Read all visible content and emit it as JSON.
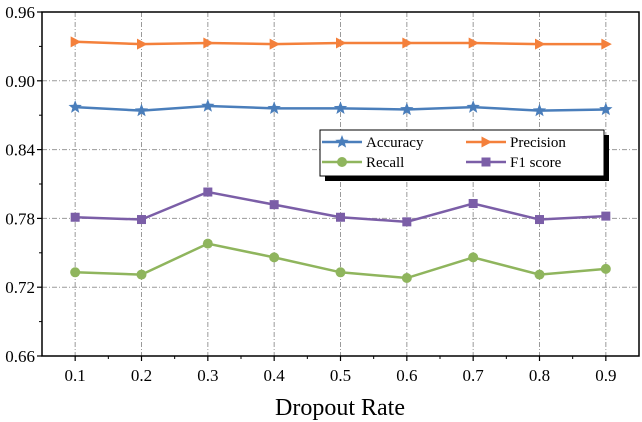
{
  "chart_data": {
    "type": "line",
    "xlabel": "Dropout Rate",
    "ylabel": "",
    "title": "",
    "x": [
      0.1,
      0.2,
      0.3,
      0.4,
      0.5,
      0.6,
      0.7,
      0.8,
      0.9
    ],
    "x_tick_labels": [
      "0.1",
      "0.2",
      "0.3",
      "0.4",
      "0.5",
      "0.6",
      "0.7",
      "0.8",
      "0.9"
    ],
    "xlim": [
      0.05,
      0.95
    ],
    "ylim": [
      0.66,
      0.96
    ],
    "y_ticks": [
      0.66,
      0.72,
      0.78,
      0.84,
      0.9,
      0.96
    ],
    "y_tick_labels": [
      "0.66",
      "0.72",
      "0.78",
      "0.84",
      "0.90",
      "0.96"
    ],
    "grid": true,
    "legend_placement": "center-right",
    "series": [
      {
        "name": "Accuracy",
        "color": "#4a7ebb",
        "marker": "star",
        "values": [
          0.877,
          0.874,
          0.878,
          0.876,
          0.876,
          0.875,
          0.877,
          0.874,
          0.875
        ]
      },
      {
        "name": "Precision",
        "color": "#f4803b",
        "marker": "triangle-right",
        "values": [
          0.934,
          0.932,
          0.933,
          0.932,
          0.933,
          0.933,
          0.933,
          0.932,
          0.932
        ]
      },
      {
        "name": "Recall",
        "color": "#8fb55d",
        "marker": "circle",
        "values": [
          0.733,
          0.731,
          0.758,
          0.746,
          0.733,
          0.728,
          0.746,
          0.731,
          0.736
        ]
      },
      {
        "name": "F1 score",
        "color": "#7b5ea7",
        "marker": "square",
        "values": [
          0.781,
          0.779,
          0.803,
          0.792,
          0.781,
          0.777,
          0.793,
          0.779,
          0.782
        ]
      }
    ]
  }
}
